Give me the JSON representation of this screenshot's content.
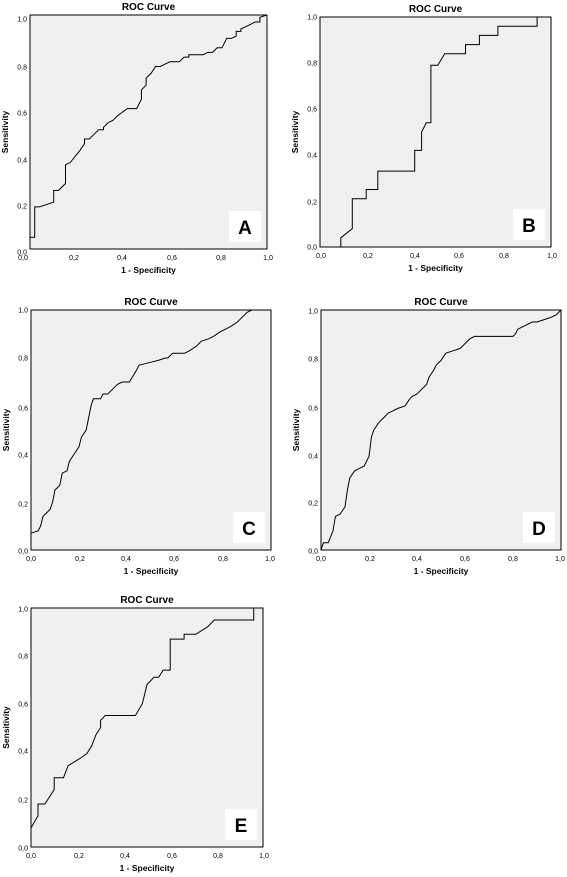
{
  "chart_data": [
    {
      "type": "line",
      "title": "ROC Curve",
      "xlabel": "1 - Specificity",
      "ylabel": "Sensitivity",
      "panel_label": "A",
      "xlim": [
        0,
        1
      ],
      "ylim": [
        0,
        1
      ],
      "x_ticks": [
        "0,0",
        "0,2",
        "0,4",
        "0,6",
        "0,8",
        "1,0"
      ],
      "y_ticks": [
        "0,0",
        "0,2",
        "0,4",
        "0,6",
        "0,8",
        "1,0"
      ],
      "grid": false,
      "series": [
        {
          "x": [
            0,
            0,
            0.02,
            0.02,
            0.04,
            0.04,
            0.1,
            0.1,
            0.12,
            0.12,
            0.15,
            0.15,
            0.17,
            0.17,
            0.21,
            0.21,
            0.23,
            0.23,
            0.25,
            0.27,
            0.27,
            0.29,
            0.31,
            0.31,
            0.33,
            0.33,
            0.35,
            0.37,
            0.41,
            0.45,
            0.47,
            0.47,
            0.49,
            0.49,
            0.51,
            0.51,
            0.53,
            0.53,
            0.55,
            0.55,
            0.57,
            0.59,
            0.61,
            0.63,
            0.65,
            0.67,
            0.67,
            0.69,
            0.71,
            0.73,
            0.75,
            0.77,
            0.79,
            0.79,
            0.81,
            0.83,
            0.85,
            0.87,
            0.87,
            0.89,
            0.89,
            0.91,
            0.93,
            0.95,
            0.97,
            0.97,
            1.0
          ],
          "y": [
            0,
            0.05,
            0.05,
            0.18,
            0.18,
            0.18,
            0.2,
            0.25,
            0.25,
            0.25,
            0.28,
            0.36,
            0.37,
            0.37,
            0.42,
            0.42,
            0.45,
            0.47,
            0.47,
            0.49,
            0.49,
            0.51,
            0.51,
            0.52,
            0.54,
            0.54,
            0.55,
            0.57,
            0.6,
            0.6,
            0.64,
            0.68,
            0.7,
            0.73,
            0.75,
            0.75,
            0.78,
            0.78,
            0.78,
            0.78,
            0.79,
            0.8,
            0.8,
            0.8,
            0.82,
            0.82,
            0.83,
            0.83,
            0.83,
            0.83,
            0.84,
            0.84,
            0.86,
            0.86,
            0.86,
            0.9,
            0.9,
            0.91,
            0.93,
            0.93,
            0.94,
            0.95,
            0.96,
            0.97,
            0.97,
            0.99,
            1.0
          ]
        }
      ]
    },
    {
      "type": "line",
      "title": "ROC Curve",
      "xlabel": "1 - Specificity",
      "ylabel": "Sensitivity",
      "panel_label": "B",
      "xlim": [
        0,
        1
      ],
      "ylim": [
        0,
        1
      ],
      "x_ticks": [
        "0,0",
        "0,2",
        "0,4",
        "0,6",
        "0,8",
        "1,0"
      ],
      "y_ticks": [
        "0,0",
        "0,2",
        "0,4",
        "0,6",
        "0,8",
        "1,0"
      ],
      "grid": false,
      "series": [
        {
          "x": [
            0,
            0.09,
            0.09,
            0.14,
            0.14,
            0.2,
            0.2,
            0.25,
            0.25,
            0.41,
            0.41,
            0.44,
            0.44,
            0.46,
            0.46,
            0.48,
            0.48,
            0.51,
            0.51,
            0.54,
            0.54,
            0.63,
            0.63,
            0.69,
            0.69,
            0.77,
            0.77,
            0.94,
            0.94,
            1.0
          ],
          "y": [
            0,
            0,
            0.04,
            0.08,
            0.21,
            0.21,
            0.25,
            0.25,
            0.33,
            0.33,
            0.42,
            0.42,
            0.5,
            0.54,
            0.54,
            0.54,
            0.79,
            0.79,
            0.79,
            0.84,
            0.84,
            0.84,
            0.88,
            0.88,
            0.92,
            0.92,
            0.96,
            0.96,
            1.0,
            1.0
          ]
        }
      ]
    },
    {
      "type": "line",
      "title": "ROC Curve",
      "xlabel": "1 - Specificity",
      "ylabel": "Sensitivity",
      "panel_label": "C",
      "xlim": [
        0,
        1
      ],
      "ylim": [
        0,
        1
      ],
      "x_ticks": [
        "0,0",
        "0,2",
        "0,4",
        "0,6",
        "0,8",
        "1,0"
      ],
      "y_ticks": [
        "0,0",
        "0,2",
        "0,4",
        "0,6",
        "0,8",
        "1,0"
      ],
      "grid": false,
      "series": [
        {
          "x": [
            0,
            0,
            0.03,
            0.04,
            0.05,
            0.08,
            0.09,
            0.1,
            0.12,
            0.13,
            0.15,
            0.16,
            0.18,
            0.2,
            0.21,
            0.23,
            0.24,
            0.25,
            0.26,
            0.28,
            0.29,
            0.3,
            0.32,
            0.35,
            0.36,
            0.38,
            0.4,
            0.41,
            0.44,
            0.45,
            0.49,
            0.53,
            0.56,
            0.57,
            0.59,
            0.6,
            0.64,
            0.66,
            0.69,
            0.71,
            0.74,
            0.76,
            0.79,
            0.83,
            0.86,
            0.88,
            0.9,
            0.92,
            1.0
          ],
          "y": [
            0,
            0.07,
            0.08,
            0.1,
            0.14,
            0.17,
            0.2,
            0.25,
            0.27,
            0.32,
            0.33,
            0.37,
            0.4,
            0.43,
            0.47,
            0.5,
            0.55,
            0.6,
            0.63,
            0.63,
            0.63,
            0.65,
            0.65,
            0.68,
            0.69,
            0.7,
            0.7,
            0.7,
            0.75,
            0.77,
            0.78,
            0.79,
            0.8,
            0.8,
            0.82,
            0.82,
            0.82,
            0.83,
            0.85,
            0.87,
            0.88,
            0.89,
            0.91,
            0.93,
            0.95,
            0.97,
            0.99,
            1.0,
            1.0
          ]
        }
      ]
    },
    {
      "type": "line",
      "title": "ROC Curve",
      "xlabel": "1 - Specificity",
      "ylabel": "Sensitivity",
      "panel_label": "D",
      "xlim": [
        0,
        1
      ],
      "ylim": [
        0,
        1
      ],
      "x_ticks": [
        "0,0",
        "0,2",
        "0,4",
        "0,6",
        "0,8",
        "1,0"
      ],
      "y_ticks": [
        "0,0",
        "0,2",
        "0,4",
        "0,6",
        "0,8",
        "1,0"
      ],
      "grid": false,
      "series": [
        {
          "x": [
            0,
            0.01,
            0.03,
            0.05,
            0.06,
            0.08,
            0.1,
            0.11,
            0.12,
            0.14,
            0.16,
            0.18,
            0.2,
            0.21,
            0.22,
            0.24,
            0.26,
            0.28,
            0.3,
            0.32,
            0.35,
            0.37,
            0.38,
            0.4,
            0.42,
            0.44,
            0.45,
            0.47,
            0.48,
            0.5,
            0.52,
            0.55,
            0.58,
            0.6,
            0.62,
            0.64,
            0.66,
            0.7,
            0.74,
            0.8,
            0.81,
            0.82,
            0.84,
            0.86,
            0.88,
            0.9,
            0.93,
            0.96,
            0.98,
            1.0
          ],
          "y": [
            0,
            0.03,
            0.03,
            0.08,
            0.14,
            0.15,
            0.18,
            0.25,
            0.3,
            0.33,
            0.34,
            0.35,
            0.39,
            0.47,
            0.5,
            0.53,
            0.55,
            0.57,
            0.58,
            0.59,
            0.6,
            0.63,
            0.64,
            0.65,
            0.67,
            0.69,
            0.72,
            0.75,
            0.77,
            0.79,
            0.82,
            0.83,
            0.84,
            0.86,
            0.88,
            0.89,
            0.89,
            0.89,
            0.89,
            0.89,
            0.9,
            0.92,
            0.93,
            0.94,
            0.95,
            0.95,
            0.96,
            0.97,
            0.98,
            1.0
          ]
        }
      ]
    },
    {
      "type": "line",
      "title": "ROC Curve",
      "xlabel": "1 - Specificity",
      "ylabel": "Sensitivity",
      "panel_label": "E",
      "xlim": [
        0,
        1
      ],
      "ylim": [
        0,
        1
      ],
      "x_ticks": [
        "0,0",
        "0,2",
        "0,4",
        "0,6",
        "0,8",
        "1,0"
      ],
      "y_ticks": [
        "0,0",
        "0,2",
        "0,4",
        "0,6",
        "0,8",
        "1,0"
      ],
      "grid": false,
      "series": [
        {
          "x": [
            0,
            0,
            0.03,
            0.03,
            0.06,
            0.1,
            0.1,
            0.14,
            0.16,
            0.21,
            0.24,
            0.26,
            0.28,
            0.3,
            0.3,
            0.32,
            0.34,
            0.45,
            0.48,
            0.5,
            0.53,
            0.55,
            0.57,
            0.6,
            0.6,
            0.66,
            0.66,
            0.71,
            0.76,
            0.79,
            0.79,
            0.96,
            0.96,
            1.0
          ],
          "y": [
            0,
            0.08,
            0.13,
            0.18,
            0.18,
            0.24,
            0.29,
            0.29,
            0.34,
            0.37,
            0.39,
            0.42,
            0.47,
            0.5,
            0.53,
            0.55,
            0.55,
            0.55,
            0.6,
            0.68,
            0.71,
            0.71,
            0.74,
            0.74,
            0.87,
            0.87,
            0.89,
            0.89,
            0.92,
            0.95,
            0.95,
            0.95,
            1.0,
            1.0
          ]
        }
      ]
    }
  ]
}
